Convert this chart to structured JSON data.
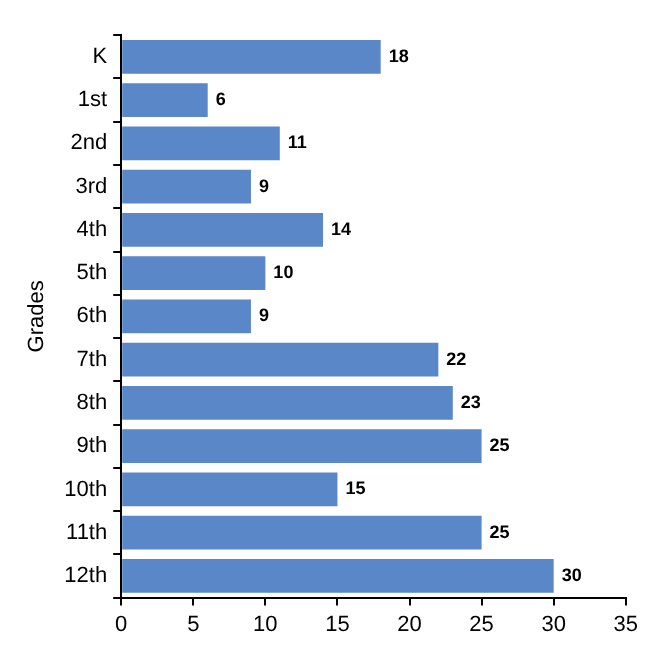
{
  "chart_data": {
    "type": "bar",
    "orientation": "horizontal",
    "ylabel": "Grades",
    "categories": [
      "K",
      "1st",
      "2nd",
      "3rd",
      "4th",
      "5th",
      "6th",
      "7th",
      "8th",
      "9th",
      "10th",
      "11th",
      "12th"
    ],
    "values": [
      18,
      6,
      11,
      9,
      14,
      10,
      9,
      22,
      23,
      25,
      15,
      25,
      30
    ],
    "color": "#5a87c8",
    "xlim": [
      0,
      35
    ],
    "xticks": [
      0,
      5,
      10,
      15,
      20,
      25,
      30,
      35
    ],
    "grid": false,
    "legend": false,
    "data_labels": true
  }
}
